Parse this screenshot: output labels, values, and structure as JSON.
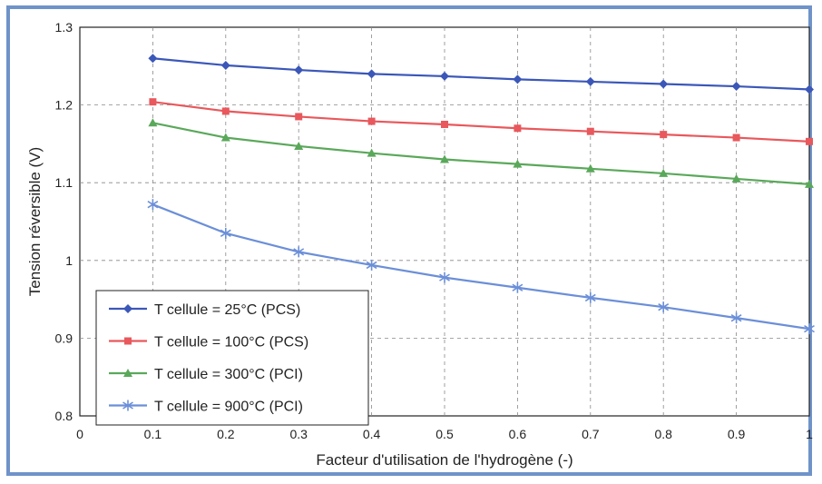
{
  "chart_data": {
    "type": "line",
    "xlabel": "Facteur d'utilisation de l'hydrogène (-)",
    "ylabel": "Tension réversible (V)",
    "xlim": [
      0,
      1
    ],
    "ylim": [
      0.8,
      1.3
    ],
    "xticks": [
      0,
      0.1,
      0.2,
      0.3,
      0.4,
      0.5,
      0.6,
      0.7,
      0.8,
      0.9,
      1
    ],
    "xtick_labels": [
      "0",
      "0.1",
      "0.2",
      "0.3",
      "0.4",
      "0.5",
      "0.6",
      "0.7",
      "0.8",
      "0.9",
      "1"
    ],
    "yticks": [
      0.8,
      0.9,
      1.0,
      1.1,
      1.2,
      1.3
    ],
    "ytick_labels": [
      "0.8",
      "0.9",
      "1",
      "1.1",
      "1.2",
      "1.3"
    ],
    "grid": "dashed",
    "legend_position": "bottom-left",
    "x": [
      0.1,
      0.2,
      0.3,
      0.4,
      0.5,
      0.6,
      0.7,
      0.8,
      0.9,
      1.0
    ],
    "series": [
      {
        "name": "T cellule = 25°C (PCS)",
        "color": "#3b57b8",
        "marker": "diamond",
        "values": [
          1.26,
          1.251,
          1.245,
          1.24,
          1.237,
          1.233,
          1.23,
          1.227,
          1.224,
          1.22
        ]
      },
      {
        "name": "T cellule = 100°C (PCS)",
        "color": "#e8585c",
        "marker": "square",
        "values": [
          1.204,
          1.192,
          1.185,
          1.179,
          1.175,
          1.17,
          1.166,
          1.162,
          1.158,
          1.153
        ]
      },
      {
        "name": "T cellule = 300°C (PCI)",
        "color": "#5aa85a",
        "marker": "triangle",
        "values": [
          1.177,
          1.158,
          1.147,
          1.138,
          1.13,
          1.124,
          1.118,
          1.112,
          1.105,
          1.098
        ]
      },
      {
        "name": "T cellule = 900°C (PCI)",
        "color": "#6b8fd8",
        "marker": "star",
        "values": [
          1.072,
          1.035,
          1.011,
          0.994,
          0.978,
          0.965,
          0.952,
          0.94,
          0.926,
          0.912
        ]
      }
    ]
  }
}
